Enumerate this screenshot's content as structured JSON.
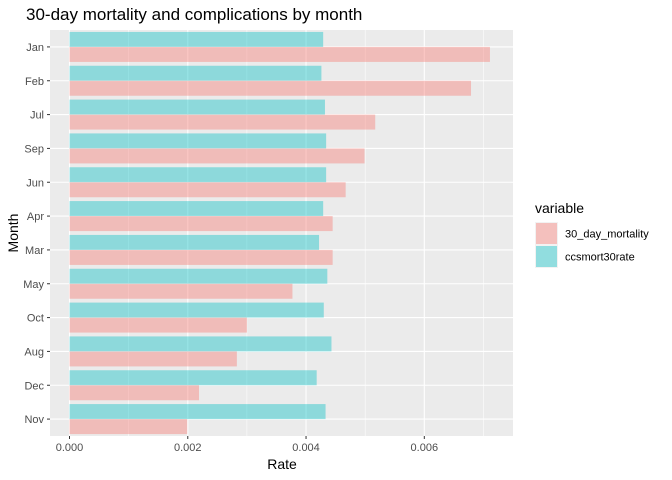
{
  "chart_data": {
    "type": "bar",
    "orientation": "horizontal",
    "title": "30-day mortality and complications by month",
    "xlabel": "Rate",
    "ylabel": "Month",
    "xlim": [
      -0.00033,
      0.0075
    ],
    "xticks": [
      0.0,
      0.002,
      0.004,
      0.006
    ],
    "xtick_labels": [
      "0.000",
      "0.002",
      "0.004",
      "0.006"
    ],
    "grid": true,
    "legend_title": "variable",
    "legend_position": "right",
    "categories": [
      "Jan",
      "Feb",
      "Jul",
      "Sep",
      "Jun",
      "Apr",
      "Mar",
      "May",
      "Oct",
      "Aug",
      "Dec",
      "Nov"
    ],
    "series": [
      {
        "name": "30_day_mortality",
        "color": "#F8766D",
        "values": [
          0.00711,
          0.00679,
          0.00517,
          0.00499,
          0.00467,
          0.00445,
          0.00445,
          0.00377,
          0.003,
          0.00283,
          0.00219,
          0.00199
        ]
      },
      {
        "name": "ccsmort30rate",
        "color": "#00BFC4",
        "values": [
          0.00429,
          0.00426,
          0.00432,
          0.00434,
          0.00434,
          0.00429,
          0.00422,
          0.00436,
          0.0043,
          0.00443,
          0.00418,
          0.00433
        ]
      }
    ]
  }
}
